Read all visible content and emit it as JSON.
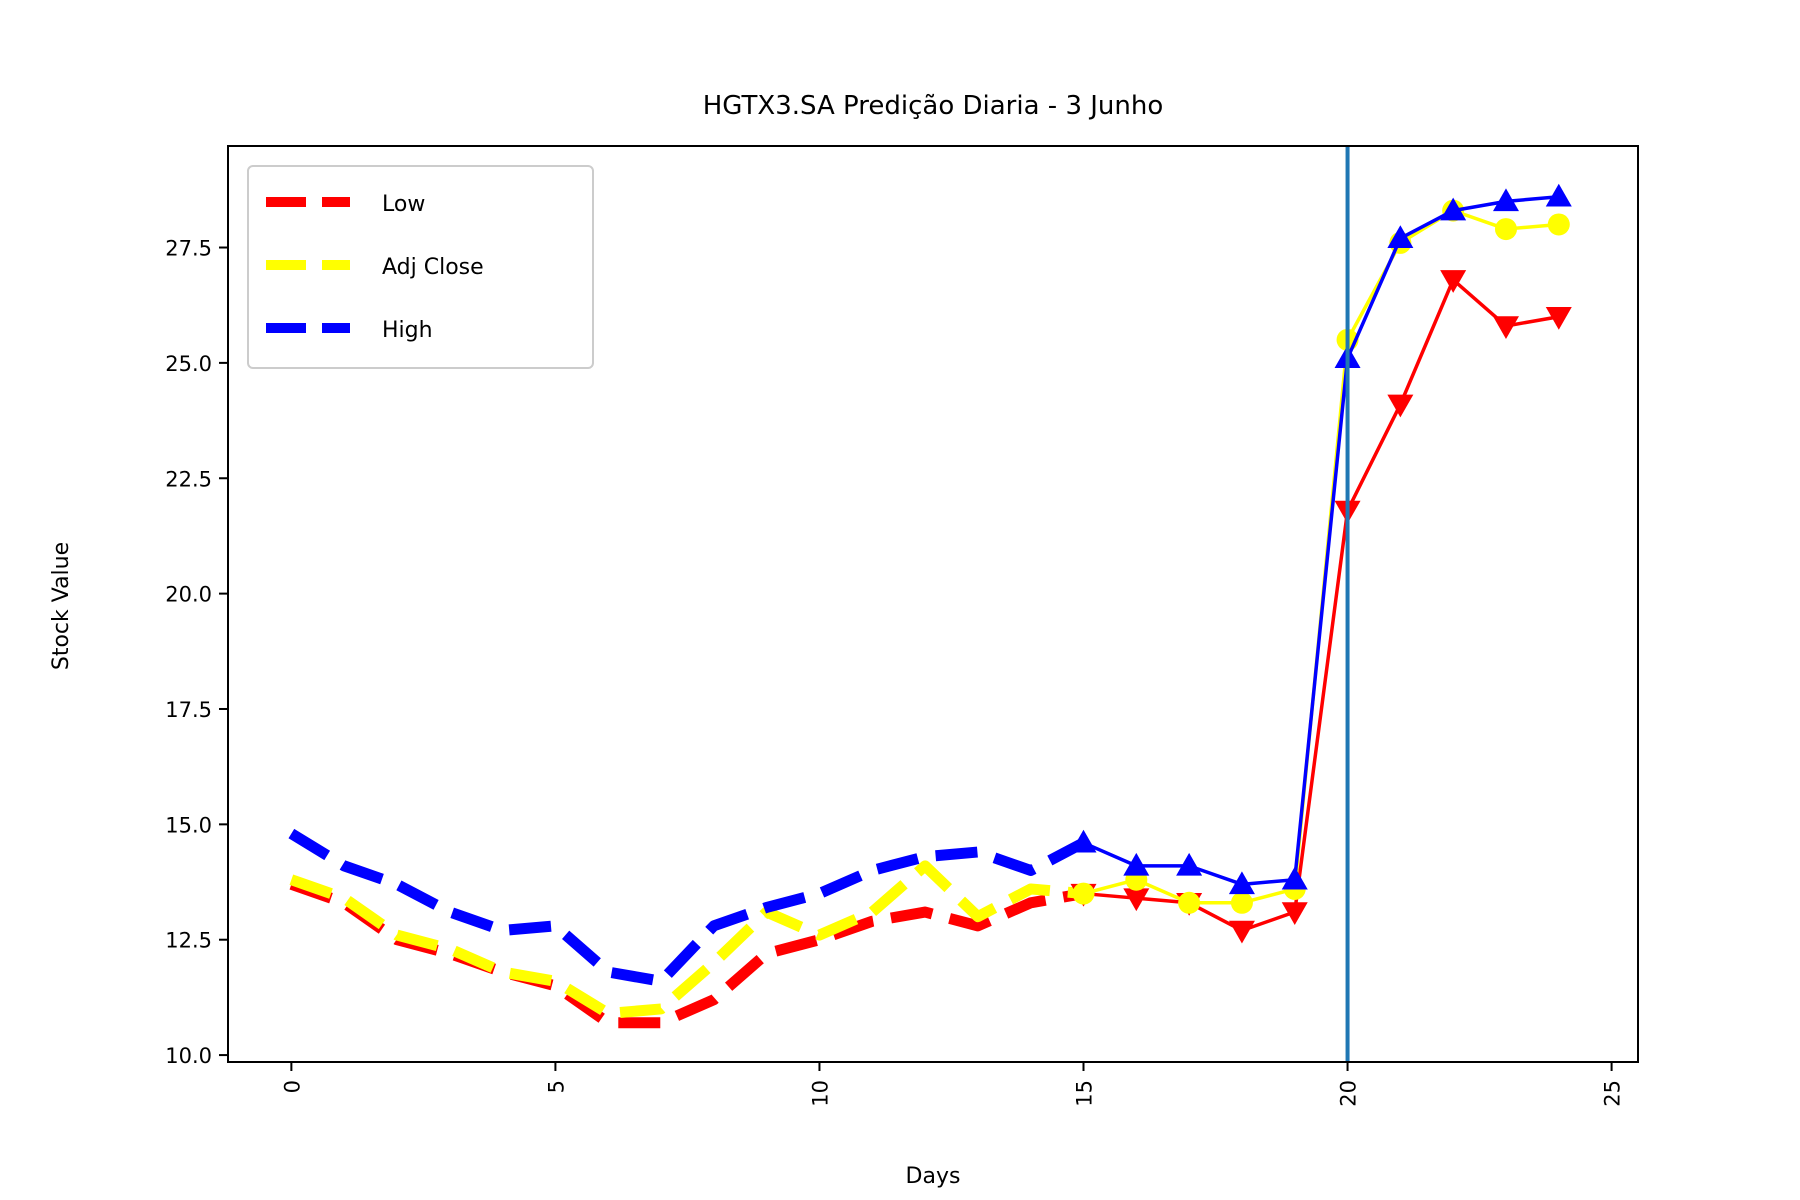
{
  "chart_data": {
    "type": "line",
    "title": "HGTX3.SA Predição Diaria - 3 Junho",
    "xlabel": "Days",
    "ylabel": "Stock Value",
    "xlim": [
      -1.2,
      25.5
    ],
    "ylim": [
      9.85,
      29.7
    ],
    "xticks": [
      0,
      5,
      10,
      15,
      20,
      25
    ],
    "yticks": [
      10.0,
      12.5,
      15.0,
      17.5,
      20.0,
      22.5,
      25.0,
      27.5
    ],
    "vline_x": 20,
    "vline_color": "#1f77b4",
    "legend": {
      "position": "top-left"
    },
    "series": [
      {
        "name": "Low",
        "color": "#ff0000",
        "x": [
          0,
          1,
          2,
          3,
          4,
          5,
          6,
          7,
          8,
          9,
          10,
          11,
          12,
          13,
          14,
          15
        ],
        "values": [
          13.7,
          13.3,
          12.5,
          12.2,
          11.8,
          11.5,
          10.7,
          10.7,
          11.2,
          12.2,
          12.5,
          12.9,
          13.1,
          12.8,
          13.3,
          13.5
        ],
        "forecast": {
          "marker": "triangle-down",
          "x": [
            15,
            16,
            17,
            18,
            19,
            20,
            21,
            22,
            23,
            24
          ],
          "values": [
            13.5,
            13.4,
            13.3,
            12.7,
            13.1,
            21.8,
            24.1,
            26.8,
            25.8,
            26.0
          ]
        }
      },
      {
        "name": "Adj Close",
        "color": "#ffff00",
        "x": [
          0,
          1,
          2,
          3,
          4,
          5,
          6,
          7,
          8,
          9,
          10,
          11,
          12,
          13,
          14,
          15
        ],
        "values": [
          13.8,
          13.4,
          12.6,
          12.3,
          11.8,
          11.6,
          10.9,
          11.0,
          12.0,
          13.1,
          12.6,
          13.1,
          14.1,
          13.0,
          13.6,
          13.5
        ],
        "forecast": {
          "marker": "circle",
          "x": [
            15,
            16,
            17,
            18,
            19,
            20,
            21,
            22,
            23,
            24
          ],
          "values": [
            13.5,
            13.8,
            13.3,
            13.3,
            13.6,
            25.5,
            27.6,
            28.3,
            27.9,
            28.0
          ]
        }
      },
      {
        "name": "High",
        "color": "#0000ff",
        "x": [
          0,
          1,
          2,
          3,
          4,
          5,
          6,
          7,
          8,
          9,
          10,
          11,
          12,
          13,
          14,
          15
        ],
        "values": [
          14.8,
          14.1,
          13.7,
          13.1,
          12.7,
          12.8,
          11.8,
          11.6,
          12.8,
          13.2,
          13.5,
          14.0,
          14.3,
          14.4,
          14.0,
          14.6
        ],
        "forecast": {
          "marker": "triangle-up",
          "x": [
            15,
            16,
            17,
            18,
            19,
            20,
            21,
            22,
            23,
            24
          ],
          "values": [
            14.6,
            14.1,
            14.1,
            13.7,
            13.8,
            25.1,
            27.7,
            28.3,
            28.5,
            28.6
          ]
        }
      }
    ]
  }
}
